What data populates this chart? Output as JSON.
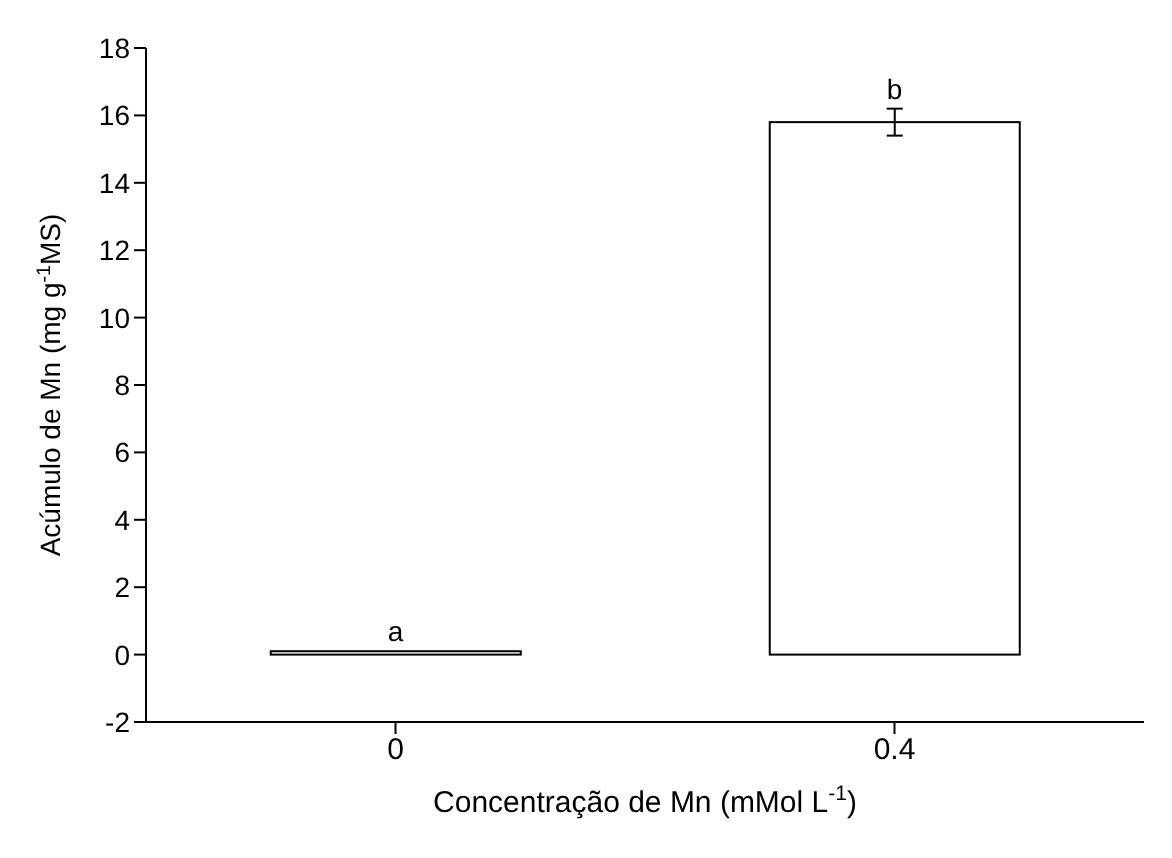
{
  "chart_data": {
    "type": "bar",
    "categories": [
      "0",
      "0.4"
    ],
    "values": [
      0.1,
      15.8
    ],
    "errors": [
      null,
      0.4
    ],
    "color": "#ffffff",
    "ylim": [
      -2,
      18
    ],
    "yticks": [
      -2,
      0,
      2,
      4,
      6,
      8,
      10,
      12,
      14,
      16,
      18
    ],
    "xlabel": "Concentração de Mn (mMol L$^{-1}$)",
    "ylabel": "Acúmulo de Mn  (mg g$^{-1}$MS)",
    "annotations": [
      {
        "text": "a",
        "x": "0",
        "y": 0.1
      },
      {
        "text": "b",
        "x": "0.4",
        "y": 16.2
      }
    ],
    "grid": false,
    "legend": false
  }
}
